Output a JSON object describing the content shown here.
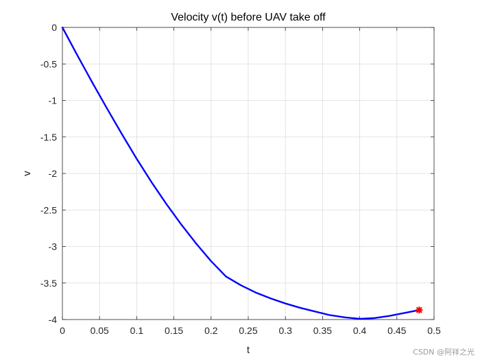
{
  "chart_data": {
    "type": "line",
    "title": "Velocity v(t) before UAV take off",
    "xlabel": "t",
    "ylabel": "v",
    "xlim": [
      0,
      0.5
    ],
    "ylim": [
      -4,
      0
    ],
    "xticks": [
      0,
      0.05,
      0.1,
      0.15,
      0.2,
      0.25,
      0.3,
      0.35,
      0.4,
      0.45,
      0.5
    ],
    "xtick_labels": [
      "0",
      "0.05",
      "0.1",
      "0.15",
      "0.2",
      "0.25",
      "0.3",
      "0.35",
      "0.4",
      "0.45",
      "0.5"
    ],
    "yticks": [
      0,
      -0.5,
      -1,
      -1.5,
      -2,
      -2.5,
      -3,
      -3.5,
      -4
    ],
    "ytick_labels": [
      "0",
      "-0.5",
      "-1",
      "-1.5",
      "-2",
      "-2.5",
      "-3",
      "-3.5",
      "-4"
    ],
    "grid": true,
    "series": [
      {
        "color": "#0000ff",
        "x": [
          0,
          0.02,
          0.04,
          0.06,
          0.08,
          0.1,
          0.12,
          0.14,
          0.16,
          0.18,
          0.2,
          0.22,
          0.24,
          0.26,
          0.28,
          0.3,
          0.32,
          0.34,
          0.36,
          0.38,
          0.4,
          0.42,
          0.44,
          0.46,
          0.48
        ],
        "y": [
          0,
          -0.38,
          -0.75,
          -1.11,
          -1.46,
          -1.8,
          -2.12,
          -2.42,
          -2.7,
          -2.96,
          -3.2,
          -3.41,
          -3.53,
          -3.63,
          -3.71,
          -3.78,
          -3.84,
          -3.89,
          -3.94,
          -3.97,
          -3.99,
          -3.98,
          -3.95,
          -3.91,
          -3.87
        ]
      }
    ],
    "marker": {
      "x": 0.48,
      "y": -3.87,
      "color": "#ff0000",
      "symbol": "star"
    }
  },
  "watermark": "CSDN @阿祥之光"
}
